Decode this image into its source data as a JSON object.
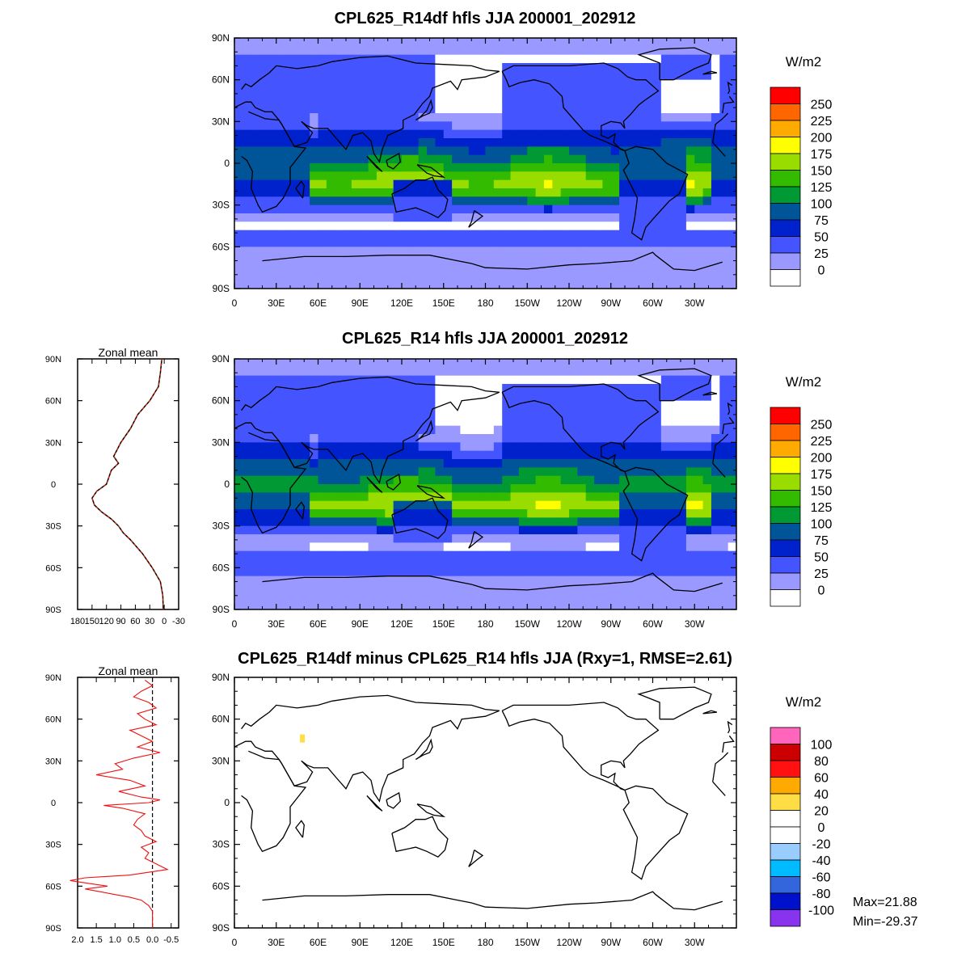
{
  "chart_data": [
    {
      "type": "heatmap",
      "title": "CPL625_R14df hfls JJA 200001_202912",
      "xticks": [
        "0",
        "30E",
        "60E",
        "90E",
        "120E",
        "150E",
        "180",
        "150W",
        "120W",
        "90W",
        "60W",
        "30W"
      ],
      "yticks": [
        "90N",
        "60N",
        "30N",
        "0",
        "30S",
        "60S",
        "90S"
      ],
      "colorbar": {
        "unit": "W/m2",
        "labels": [
          "250",
          "225",
          "200",
          "175",
          "150",
          "125",
          "100",
          "75",
          "50",
          "25",
          "0"
        ],
        "colors": [
          "#ff0000",
          "#ff6600",
          "#ffaa00",
          "#ffff00",
          "#99dd00",
          "#33bb00",
          "#009933",
          "#005599",
          "#0022cc",
          "#4455ff",
          "#9999ff",
          "#ffffff"
        ]
      },
      "zonal_mean": {
        "label": "Zonal mean",
        "xticks": [
          "180",
          "150",
          "120",
          "90",
          "60",
          "30",
          "0",
          "-30"
        ],
        "lat": [
          90,
          80,
          70,
          60,
          50,
          40,
          30,
          20,
          15,
          10,
          0,
          -5,
          -10,
          -15,
          -20,
          -25,
          -30,
          -35,
          -40,
          -50,
          -60,
          -70,
          -80,
          -90
        ],
        "value": [
          5,
          8,
          12,
          30,
          55,
          70,
          90,
          105,
          95,
          110,
          120,
          140,
          150,
          145,
          130,
          110,
          95,
          85,
          70,
          45,
          25,
          8,
          3,
          2
        ]
      }
    },
    {
      "type": "heatmap",
      "title": "CPL625_R14 hfls JJA 200001_202912",
      "xticks": [
        "0",
        "30E",
        "60E",
        "90E",
        "120E",
        "150E",
        "180",
        "150W",
        "120W",
        "90W",
        "60W",
        "30W"
      ],
      "yticks": [
        "90N",
        "60N",
        "30N",
        "0",
        "30S",
        "60S",
        "90S"
      ],
      "colorbar": {
        "unit": "W/m2",
        "labels": [
          "250",
          "225",
          "200",
          "175",
          "150",
          "125",
          "100",
          "75",
          "50",
          "25",
          "0"
        ],
        "colors": [
          "#ff0000",
          "#ff6600",
          "#ffaa00",
          "#ffff00",
          "#99dd00",
          "#33bb00",
          "#009933",
          "#005599",
          "#0022cc",
          "#4455ff",
          "#9999ff",
          "#ffffff"
        ]
      }
    },
    {
      "type": "heatmap",
      "title": "CPL625_R14df minus CPL625_R14 hfls JJA (Rxy=1, RMSE=2.61)",
      "xticks": [
        "0",
        "30E",
        "60E",
        "90E",
        "120E",
        "150E",
        "180",
        "150W",
        "120W",
        "90W",
        "60W",
        "30W"
      ],
      "yticks": [
        "90N",
        "60N",
        "30N",
        "0",
        "30S",
        "60S",
        "90S"
      ],
      "colorbar": {
        "unit": "W/m2",
        "labels": [
          "100",
          "80",
          "60",
          "40",
          "20",
          "0",
          "-20",
          "-40",
          "-60",
          "-80",
          "-100"
        ],
        "colors": [
          "#ff66bb",
          "#cc0000",
          "#ff1111",
          "#ffaa00",
          "#ffdd44",
          "#ffffff",
          "#ffffff",
          "#99ccff",
          "#00bbff",
          "#3366dd",
          "#0011cc",
          "#8833ee"
        ]
      },
      "stats": {
        "max": "Max=21.88",
        "min": "Min=-29.37"
      },
      "zonal_mean": {
        "label": "Zonal mean",
        "xticks": [
          "2.0",
          "1.5",
          "1.0",
          "0.5",
          "0.0",
          "-0.5"
        ],
        "lat": [
          88,
          84,
          80,
          76,
          72,
          68,
          64,
          60,
          56,
          52,
          48,
          44,
          40,
          36,
          32,
          28,
          24,
          20,
          16,
          12,
          8,
          4,
          2,
          0,
          -2,
          -4,
          -8,
          -12,
          -16,
          -20,
          -24,
          -28,
          -32,
          -36,
          -40,
          -44,
          -48,
          -52,
          -54,
          -56,
          -58,
          -60,
          -62,
          -64,
          -66,
          -68,
          -70,
          -74,
          -78,
          -82,
          -86,
          -90
        ],
        "value": [
          0.2,
          0.0,
          0.3,
          0.5,
          0.1,
          -0.1,
          0.4,
          0.2,
          -0.1,
          0.6,
          0.3,
          0.0,
          0.4,
          -0.2,
          0.5,
          1.0,
          0.8,
          1.5,
          0.6,
          0.2,
          0.9,
          0.3,
          -0.2,
          0.1,
          1.3,
          0.8,
          0.2,
          0.4,
          0.5,
          0.3,
          0.2,
          -0.1,
          0.3,
          0.1,
          0.2,
          -0.1,
          -0.4,
          0.6,
          1.8,
          2.2,
          1.7,
          1.2,
          1.8,
          1.4,
          1.0,
          0.6,
          0.3,
          0.1,
          0.0,
          0.0,
          0.0,
          0.0
        ]
      }
    }
  ]
}
